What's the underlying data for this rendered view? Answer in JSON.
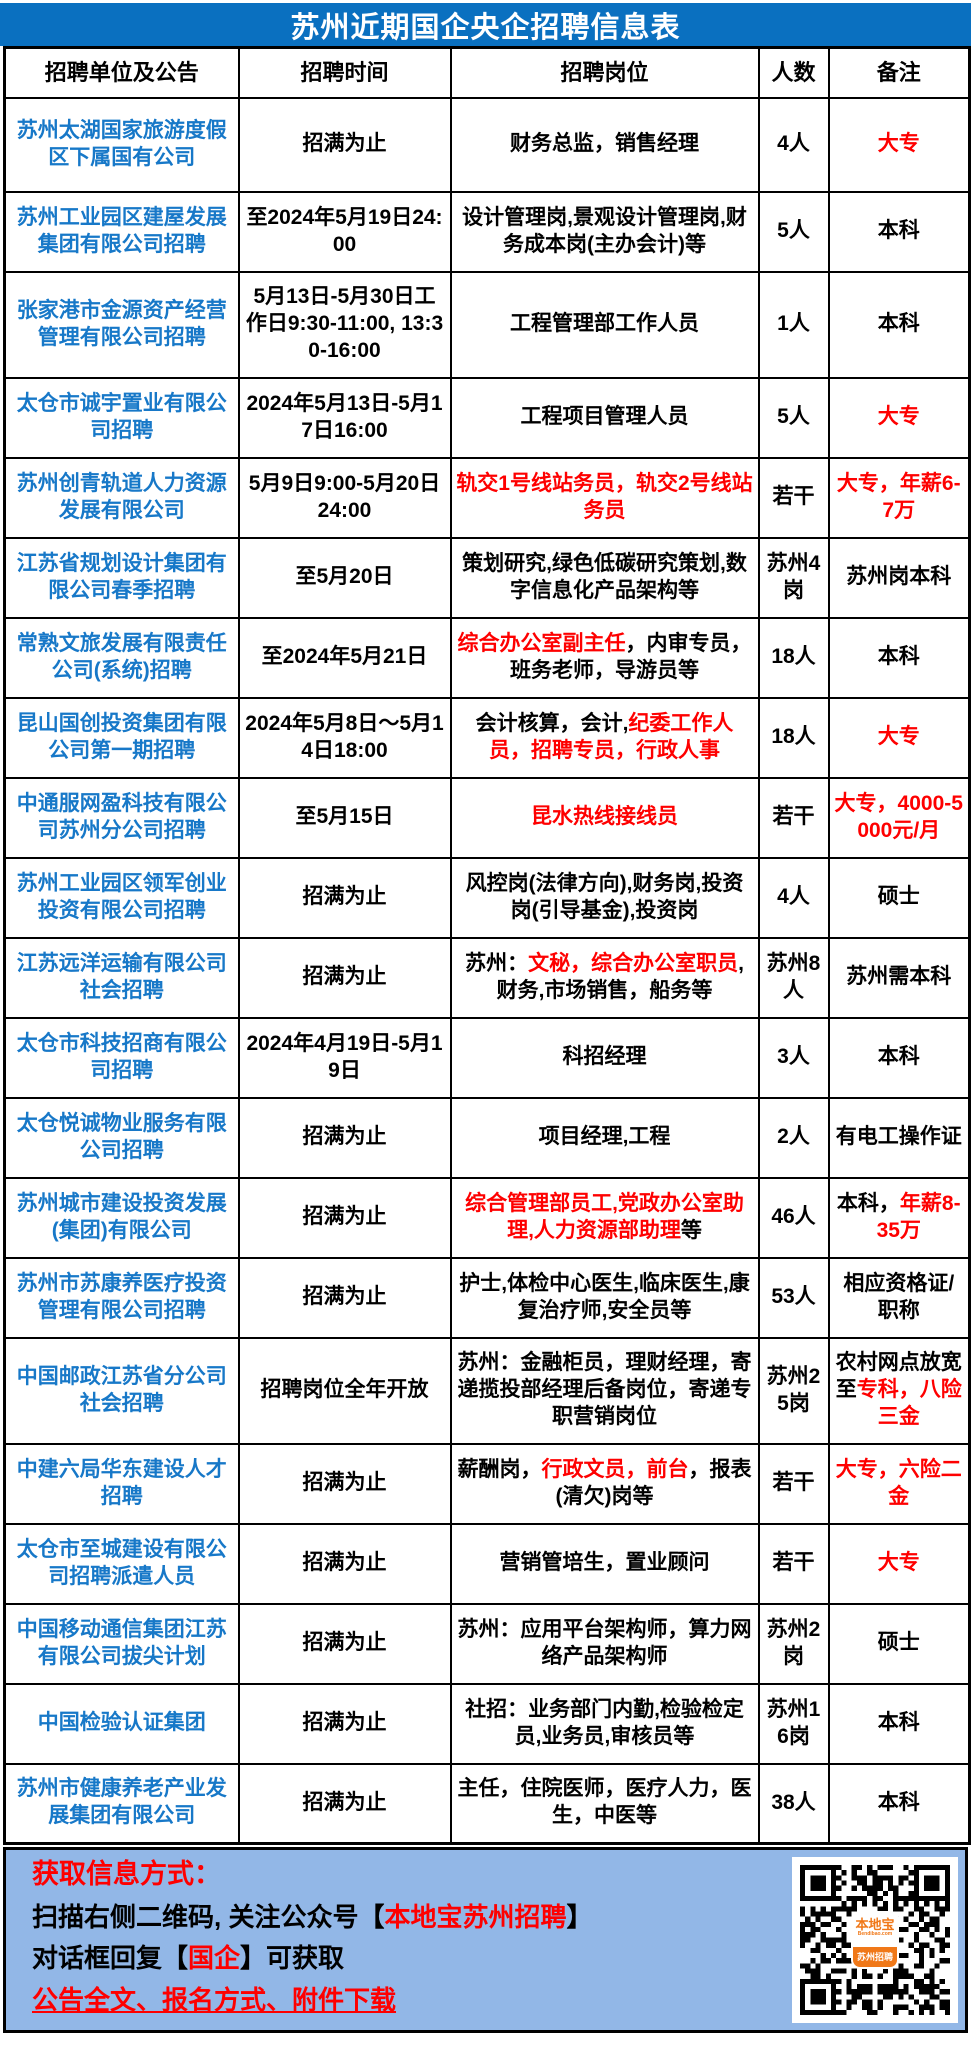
{
  "title": "苏州近期国企央企招聘信息表",
  "colors": {
    "title_bar_blue": "#0a70c0",
    "company_link_blue": "#1778c8",
    "emphasis_red": "#fe0000",
    "footer_background": "#92b7e7",
    "logo_orange": "#f07818"
  },
  "table": {
    "headers": [
      "招聘单位及公告",
      "招聘时间",
      "招聘岗位",
      "人数",
      "备注"
    ],
    "rows": [
      {
        "company": "苏州太湖国家旅游度假区下属国有公司",
        "time": "招满为止",
        "positions": [
          {
            "t": "财务总监，销售经理"
          }
        ],
        "count": "4人",
        "note": [
          {
            "t": "大专",
            "red": true
          }
        ]
      },
      {
        "company": "苏州工业园区建屋发展集团有限公司招聘",
        "time": "至2024年5月19日24:00",
        "positions": [
          {
            "t": "设计管理岗,景观设计管理岗,财务成本岗(主办会计)等"
          }
        ],
        "count": "5人",
        "note": [
          {
            "t": "本科"
          }
        ]
      },
      {
        "company": "张家港市金源资产经营管理有限公司招聘",
        "time": "5月13日-5月30日工作日9:30-11:00, 13:30-16:00",
        "positions": [
          {
            "t": "工程管理部工作人员"
          }
        ],
        "count": "1人",
        "note": [
          {
            "t": "本科"
          }
        ]
      },
      {
        "company": "太仓市诚宇置业有限公司招聘",
        "time": "2024年5月13日-5月17日16:00",
        "positions": [
          {
            "t": "工程项目管理人员"
          }
        ],
        "count": "5人",
        "note": [
          {
            "t": "大专",
            "red": true
          }
        ]
      },
      {
        "company": "苏州创青轨道人力资源发展有限公司",
        "time": "5月9日9:00-5月20日24:00",
        "positions": [
          {
            "t": "轨交1号线站务员，轨交2号线站务员",
            "red": true
          }
        ],
        "count": "若干",
        "note": [
          {
            "t": "大专，年薪6-7万",
            "red": true
          }
        ]
      },
      {
        "company": "江苏省规划设计集团有限公司春季招聘",
        "time": "至5月20日",
        "positions": [
          {
            "t": "策划研究,绿色低碳研究策划,数字信息化产品架构等"
          }
        ],
        "count": "苏州4岗",
        "note": [
          {
            "t": "苏州岗本科"
          }
        ]
      },
      {
        "company": "常熟文旅发展有限责任公司(系统)招聘",
        "time": "至2024年5月21日",
        "positions": [
          {
            "t": "综合办公室副主任",
            "red": true
          },
          {
            "t": "，内审专员，班务老师，导游员等"
          }
        ],
        "count": "18人",
        "note": [
          {
            "t": "本科"
          }
        ]
      },
      {
        "company": "昆山国创投资集团有限公司第一期招聘",
        "time": "2024年5月8日～5月14日18:00",
        "positions": [
          {
            "t": "会计核算，会计,"
          },
          {
            "t": "纪委工作人员，招聘专员，行政人事",
            "red": true
          }
        ],
        "count": "18人",
        "note": [
          {
            "t": "大专",
            "red": true
          }
        ]
      },
      {
        "company": "中通服网盈科技有限公司苏州分公司招聘",
        "time": "至5月15日",
        "positions": [
          {
            "t": "昆水热线接线员",
            "red": true
          }
        ],
        "count": "若干",
        "note": [
          {
            "t": "大专，4000-5000元/月",
            "red": true
          }
        ]
      },
      {
        "company": "苏州工业园区领军创业投资有限公司招聘",
        "time": "招满为止",
        "positions": [
          {
            "t": "风控岗(法律方向),财务岗,投资岗(引导基金),投资岗"
          }
        ],
        "count": "4人",
        "note": [
          {
            "t": "硕士"
          }
        ]
      },
      {
        "company": "江苏远洋运输有限公司社会招聘",
        "time": "招满为止",
        "positions": [
          {
            "t": "苏州："
          },
          {
            "t": "文秘，综合办公室职员",
            "red": true
          },
          {
            "t": ",财务,市场销售，船务等"
          }
        ],
        "count": "苏州8人",
        "note": [
          {
            "t": "苏州需本科"
          }
        ]
      },
      {
        "company": "太仓市科技招商有限公司招聘",
        "time": "2024年4月19日-5月19日",
        "positions": [
          {
            "t": "科招经理"
          }
        ],
        "count": "3人",
        "note": [
          {
            "t": "本科"
          }
        ]
      },
      {
        "company": "太仓悦诚物业服务有限公司招聘",
        "time": "招满为止",
        "positions": [
          {
            "t": "项目经理,工程"
          }
        ],
        "count": "2人",
        "note": [
          {
            "t": "有电工操作证"
          }
        ]
      },
      {
        "company": "苏州城市建设投资发展(集团)有限公司",
        "time": "招满为止",
        "positions": [
          {
            "t": "综合管理部员工,党政办公室助理,人力资源部助理",
            "red": true
          },
          {
            "t": "等"
          }
        ],
        "count": "46人",
        "note": [
          {
            "t": "本科，"
          },
          {
            "t": "年薪8-35万",
            "red": true
          }
        ]
      },
      {
        "company": "苏州市苏康养医疗投资管理有限公司招聘",
        "time": "招满为止",
        "positions": [
          {
            "t": "护士,体检中心医生,临床医生,康复治疗师,安全员等"
          }
        ],
        "count": "53人",
        "note": [
          {
            "t": "相应资格证/职称"
          }
        ]
      },
      {
        "company": "中国邮政江苏省分公司社会招聘",
        "time": "招聘岗位全年开放",
        "positions": [
          {
            "t": "苏州：金融柜员，理财经理，寄递揽投部经理后备岗位，寄递专职营销岗位"
          }
        ],
        "count": "苏州25岗",
        "note": [
          {
            "t": "农村网点放宽至"
          },
          {
            "t": "专科，八险三金",
            "red": true
          }
        ]
      },
      {
        "company": "中建六局华东建设人才招聘",
        "time": "招满为止",
        "positions": [
          {
            "t": "薪酬岗，"
          },
          {
            "t": "行政文员，前台",
            "red": true
          },
          {
            "t": "，报表(清欠)岗等"
          }
        ],
        "count": "若干",
        "note": [
          {
            "t": "大专，六险二金",
            "red": true
          }
        ]
      },
      {
        "company": "太仓市至城建设有限公司招聘派遣人员",
        "time": "招满为止",
        "positions": [
          {
            "t": "营销管培生，置业顾问"
          }
        ],
        "count": "若干",
        "note": [
          {
            "t": "大专",
            "red": true
          }
        ]
      },
      {
        "company": "中国移动通信集团江苏有限公司拔尖计划",
        "time": "招满为止",
        "positions": [
          {
            "t": "苏州：应用平台架构师，算力网络产品架构师"
          }
        ],
        "count": "苏州2岗",
        "note": [
          {
            "t": "硕士"
          }
        ]
      },
      {
        "company": "中国检验认证集团",
        "time": "招满为止",
        "positions": [
          {
            "t": "社招：业务部门内勤,检验检定员,业务员,审核员等"
          }
        ],
        "count": "苏州16岗",
        "note": [
          {
            "t": "本科"
          }
        ]
      },
      {
        "company": "苏州市健康养老产业发展集团有限公司",
        "time": "招满为止",
        "positions": [
          {
            "t": "主任，住院医师，医疗人力，医生，中医等"
          }
        ],
        "count": "38人",
        "note": [
          {
            "t": "本科"
          }
        ]
      }
    ]
  },
  "footer": {
    "heading": "获取信息方式：",
    "line2": [
      {
        "t": "扫描右侧二维码, 关注公众号【"
      },
      {
        "t": "本地宝苏州招聘",
        "red": true
      },
      {
        "t": "】"
      }
    ],
    "line3": [
      {
        "t": "对话框回复【"
      },
      {
        "t": "国企",
        "red": true
      },
      {
        "t": "】可获取"
      }
    ],
    "line4": "公告全文、报名方式、附件下载",
    "qr_logo": {
      "name": "本地宝",
      "url": "Bendibao.com",
      "caption": "苏州招聘"
    }
  }
}
